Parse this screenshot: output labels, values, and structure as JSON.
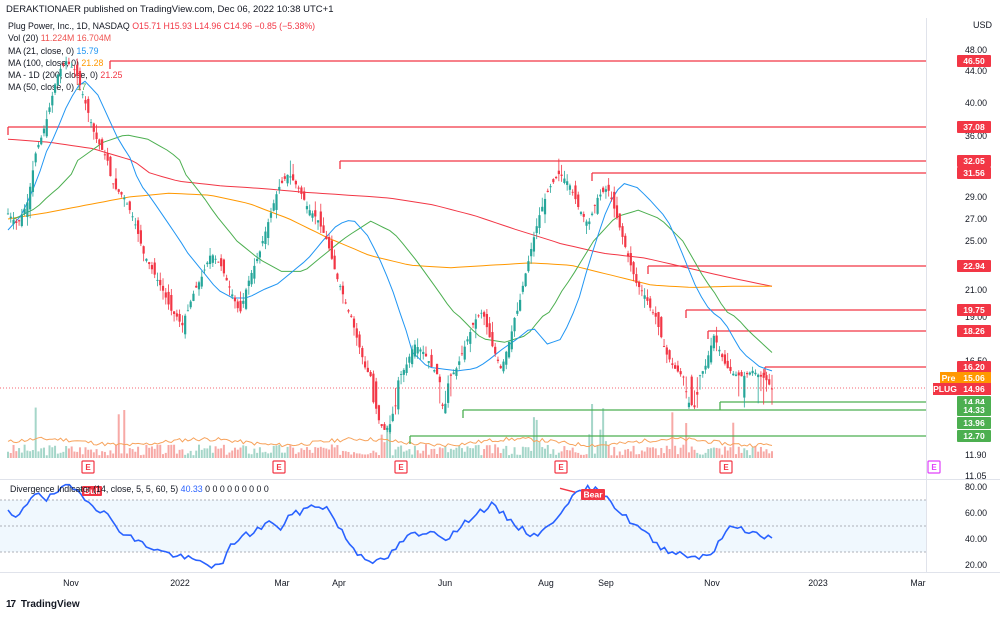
{
  "header": {
    "published": "DERAKTIONAER published on TradingView.com, Dec 06, 2022 10:38 UTC+1",
    "currency": "USD"
  },
  "legend": {
    "symbol": "Plug Power, Inc., 1D, NASDAQ",
    "ohlc": "O15.71 H15.93 L14.96 C14.96 −0.85 (−5.38%)",
    "vol_label": "Vol (20)",
    "vol_values": "11.224M 16.704M",
    "ma21_label": "MA (21, close, 0)",
    "ma21_value": "15.79",
    "ma100_label": "MA (100, close, 0)",
    "ma100_value": "21.28",
    "ma200_label": "MA - 1D (200, close, 0)",
    "ma200_value": "21.25",
    "ma50_label": "MA (50, close, 0)",
    "ma50_value": "17"
  },
  "divergence": {
    "label": "Divergence Indicator (14, close, 5, 5, 60, 5)",
    "value": "40.33",
    "zeros": "0 0 0 0 0 0 0 0 0",
    "bull_tag": "Bull",
    "bear_tag": "Bear"
  },
  "footer": {
    "brand": "TradingView",
    "icon": "tradingview-logo-icon"
  },
  "colors": {
    "up": "#26a69a",
    "down": "#f23645",
    "level_red": "#f23645",
    "level_green": "#4caf50",
    "ma21": "#2196f3",
    "ma100": "#ff9800",
    "ma200": "#f23645",
    "ma50": "#4caf50",
    "rsi": "#2962ff",
    "pre_badge": "#ff9800"
  },
  "chart_data": {
    "type": "candlestick",
    "price_axis_ticks": [
      "48.00",
      "44.00",
      "40.00",
      "36.00",
      "32.00",
      "29.00",
      "27.00",
      "25.00",
      "23.00",
      "21.00",
      "19.00",
      "16.50",
      "11.90",
      "11.05"
    ],
    "indicator_axis_ticks": [
      "80.00",
      "60.00",
      "40.00",
      "20.00"
    ],
    "x_axis_labels": [
      "Nov",
      "2022",
      "Mar",
      "Apr",
      "Jun",
      "Aug",
      "Sep",
      "Nov",
      "2023",
      "Mar"
    ],
    "levels": [
      {
        "value": "46.50",
        "color": "red"
      },
      {
        "value": "37.08",
        "color": "red"
      },
      {
        "value": "32.05",
        "color": "red"
      },
      {
        "value": "31.56",
        "color": "red"
      },
      {
        "value": "22.94",
        "color": "red"
      },
      {
        "value": "19.75",
        "color": "red"
      },
      {
        "value": "18.26",
        "color": "red"
      },
      {
        "value": "16.20",
        "color": "red"
      },
      {
        "value": "14.84",
        "color": "green"
      },
      {
        "value": "14.33",
        "color": "green"
      },
      {
        "value": "13.96",
        "color": "green"
      },
      {
        "value": "12.70",
        "color": "green"
      }
    ],
    "badges": [
      {
        "label": "Pre",
        "value": "15.06",
        "color": "orange"
      },
      {
        "label": "PLUG",
        "value": "14.96",
        "color": "red"
      }
    ],
    "price_path": [
      27.5,
      26.5,
      28.5,
      34,
      38,
      43,
      46.5,
      44,
      40,
      36,
      33,
      30,
      29,
      27,
      24,
      22.5,
      21,
      19.5,
      18.5,
      20.5,
      22,
      24,
      23,
      21,
      19.5,
      22,
      24,
      27,
      30,
      31.5,
      30,
      28,
      27,
      25,
      22,
      20,
      18,
      16,
      14.5,
      13.2,
      14.5,
      16,
      17.5,
      17,
      16,
      14.5,
      15.5,
      17,
      18.5,
      19.5,
      17.5,
      16,
      18,
      20.5,
      24,
      27.5,
      30,
      31.5,
      30.5,
      28,
      26.5,
      29,
      30,
      27,
      24,
      21.5,
      20.5,
      19,
      17,
      16,
      15,
      14.5,
      16,
      18,
      16.5,
      15.5,
      15.2,
      15.8,
      15.1,
      14.96
    ],
    "ma21_path": [
      26,
      27.5,
      31,
      35.5,
      40,
      43,
      41,
      37,
      33,
      30,
      28,
      26,
      24,
      22.5,
      21,
      20.5,
      20.5,
      21,
      21.5,
      22.5,
      23.5,
      25,
      26.5,
      27,
      25.5,
      23,
      20,
      17,
      16.2,
      16,
      15.8,
      16,
      16.5,
      17.2,
      17.8,
      18.5,
      17.5,
      17.8,
      20,
      24,
      28,
      30.5,
      30,
      28.5,
      27,
      24,
      21,
      19.5,
      18.5,
      17,
      16.3,
      15.8
    ],
    "ma50_path": [
      27,
      28,
      30,
      32.5,
      35,
      36.2,
      35.5,
      33.5,
      30.5,
      27.5,
      25,
      23.5,
      22.5,
      22.5,
      24,
      25.5,
      26.8,
      25.8,
      23.5,
      21,
      19,
      17.8,
      17.6,
      18,
      19.5,
      22,
      25,
      27.2,
      27.8,
      27,
      25,
      21.8,
      19.5,
      18.2,
      17
    ],
    "ma100_path": [
      27,
      27.6,
      28.3,
      29,
      29.4,
      29.2,
      28.4,
      27,
      25.2,
      23.8,
      23,
      22.8,
      23,
      23.2,
      23,
      22.2,
      21.4,
      21.2,
      21.3,
      21.3
    ],
    "ma200_path": [
      35.5,
      35,
      34,
      32,
      30.7,
      30.2,
      29.9,
      29.5,
      29.2,
      28.9,
      28.3,
      27.3,
      26,
      24.8,
      24,
      23.6,
      22.8,
      22,
      21.3
    ],
    "volume": "relative bars, spike at each E (earnings) marker",
    "earnings_markers": [
      "E",
      "E",
      "E",
      "E",
      "E",
      "E"
    ],
    "indicator_path": [
      60,
      55,
      68,
      78,
      70,
      76,
      80,
      78,
      72,
      65,
      60,
      52,
      44,
      40,
      36,
      33,
      30,
      28,
      26,
      24,
      22,
      20,
      18,
      34,
      42,
      44,
      48,
      54,
      46,
      58,
      60,
      64,
      66,
      64,
      52,
      40,
      30,
      26,
      22,
      24,
      32,
      40,
      44,
      42,
      48,
      40,
      44,
      50,
      58,
      62,
      66,
      60,
      54,
      48,
      44,
      44,
      50,
      60,
      70,
      75,
      79,
      77,
      74,
      62,
      56,
      50,
      44,
      36,
      32,
      30,
      28,
      26,
      28,
      30,
      44,
      50,
      48,
      45,
      42,
      40.33
    ],
    "indicator_band": [
      30,
      70
    ]
  }
}
